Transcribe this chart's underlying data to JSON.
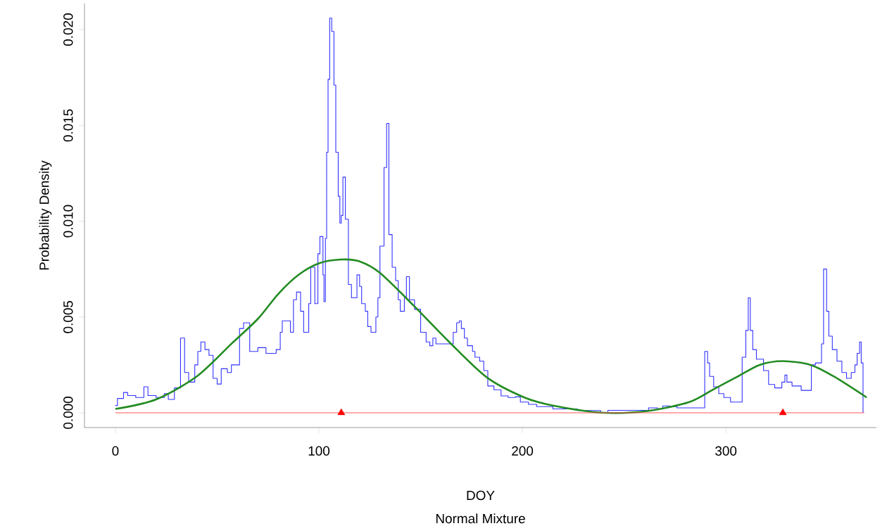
{
  "chart_data": {
    "type": "step",
    "xlabel": "DOY",
    "subtitle": "Normal Mixture",
    "ylabel": "Probability Density",
    "xlim": [
      -15.2,
      374
    ],
    "ylim": [
      -0.00077,
      0.02136
    ],
    "xticks": [
      0,
      100,
      200,
      300
    ],
    "yticks": [
      {
        "value": 0,
        "label": "0.000"
      },
      {
        "value": 0.005,
        "label": "0.005"
      },
      {
        "value": 0.01,
        "label": "0.010"
      },
      {
        "value": 0.015,
        "label": "0.015"
      },
      {
        "value": 0.02,
        "label": "0.020"
      }
    ],
    "grid": false,
    "series": [
      {
        "color": "#3333ff",
        "x": [
          0,
          1,
          4,
          6,
          10,
          14,
          16,
          20,
          24,
          26,
          29,
          32,
          34,
          36,
          39,
          40.5,
          42,
          44,
          46,
          48,
          50,
          52,
          55,
          57,
          61,
          63,
          66,
          70,
          74,
          79,
          81,
          82,
          86,
          87.5,
          89,
          91,
          92.5,
          95,
          96,
          98,
          99.5,
          100.5,
          102,
          102.5,
          103.2,
          103.8,
          104.5,
          105.3,
          106.3,
          107.4,
          108.3,
          109.5,
          110.3,
          111,
          111.8,
          113,
          114.5,
          116,
          118.7,
          120,
          121,
          122.8,
          124,
          125.6,
          128,
          129,
          130,
          132,
          133.3,
          134.4,
          136,
          137.7,
          139,
          140,
          142,
          143,
          144.5,
          147,
          150,
          152.7,
          154.5,
          156,
          157.5,
          166,
          167.7,
          169,
          170,
          171.5,
          173,
          175.5,
          176.7,
          179,
          181,
          183,
          186,
          189.5,
          193,
          196.5,
          199,
          203,
          207,
          215,
          227,
          238.5,
          242,
          262,
          266.5,
          269,
          272.5,
          276,
          289.6,
          291,
          292,
          294,
          296.5,
          299,
          302.3,
          308,
          309.8,
          311,
          312,
          313.2,
          315,
          318.5,
          321,
          324,
          327.5,
          329,
          330,
          332.5,
          337,
          342,
          344,
          347,
          348,
          349.5,
          350.6,
          352.3,
          354.6,
          357,
          359.3,
          361.6,
          363.4,
          364.5,
          365.7,
          366.5,
          367.4
        ],
        "values": [
          0.00038,
          0.00075,
          0.00106,
          0.0009,
          0.0008,
          0.00136,
          0.0009,
          0.0008,
          0.001,
          0.0007,
          0.0013,
          0.0039,
          0.0021,
          0.0016,
          0.0025,
          0.0032,
          0.0037,
          0.0033,
          0.003,
          0.0018,
          0.0015,
          0.0023,
          0.0021,
          0.0025,
          0.0044,
          0.0047,
          0.0032,
          0.0034,
          0.0031,
          0.0033,
          0.0042,
          0.0048,
          0.0042,
          0.0059,
          0.0063,
          0.0053,
          0.0042,
          0.0057,
          0.0076,
          0.0057,
          0.0083,
          0.0092,
          0.0072,
          0.0058,
          0.0091,
          0.0136,
          0.0174,
          0.0206,
          0.0199,
          0.0171,
          0.0136,
          0.0113,
          0.0099,
          0.0103,
          0.0123,
          0.0101,
          0.0067,
          0.006,
          0.0072,
          0.0066,
          0.0057,
          0.0053,
          0.0045,
          0.0042,
          0.005,
          0.006,
          0.0087,
          0.0128,
          0.0151,
          0.0093,
          0.0076,
          0.0069,
          0.0059,
          0.0053,
          0.006,
          0.0071,
          0.0059,
          0.0054,
          0.0042,
          0.0037,
          0.0035,
          0.0039,
          0.0036,
          0.0042,
          0.0047,
          0.0048,
          0.0044,
          0.0039,
          0.0035,
          0.0032,
          0.0029,
          0.0027,
          0.0022,
          0.0014,
          0.0012,
          0.00088,
          0.0008,
          0.00083,
          0.00056,
          0.00044,
          0.00032,
          0.0002,
          0.00012,
          0,
          0.00013,
          0.00026,
          0.0002,
          0.00036,
          0.00032,
          0.00026,
          0.0032,
          0.0026,
          0.0019,
          0.00136,
          0.001,
          0.0008,
          0.00056,
          0.0029,
          0.0043,
          0.006,
          0.0043,
          0.0033,
          0.0028,
          0.0022,
          0.00148,
          0.0013,
          0.0016,
          0.00197,
          0.0016,
          0.0014,
          0.00117,
          0.0025,
          0.0026,
          0.0036,
          0.0075,
          0.0053,
          0.004,
          0.0033,
          0.0027,
          0.0021,
          0.0018,
          0.0021,
          0.0025,
          0.0031,
          0.0037,
          0.0026,
          0
        ]
      },
      {
        "type": "line",
        "color": "#228b22",
        "x": [
          0,
          20,
          40,
          57,
          70,
          80,
          90,
          100,
          111,
          120,
          130,
          146.5,
          164,
          182.5,
          201,
          215,
          240,
          262,
          282,
          293.5,
          305,
          316.6,
          328,
          341.6,
          353,
          369.2
        ],
        "values": [
          0.0002,
          0.0007,
          0.0019,
          0.0036,
          0.0049,
          0.0062,
          0.0072,
          0.0078,
          0.008,
          0.0079,
          0.0073,
          0.0056,
          0.0037,
          0.00185,
          0.0008,
          0.00038,
          0,
          0.0001,
          0.00056,
          0.0012,
          0.00185,
          0.0025,
          0.0027,
          0.0025,
          0.0019,
          0.0008
        ]
      },
      {
        "type": "line",
        "color": "#ff5555",
        "x": [
          0,
          368
        ],
        "values": [
          0,
          0
        ]
      },
      {
        "type": "scatter",
        "color": "#ff0000",
        "marker": "triangle",
        "x": [
          111,
          328
        ],
        "values": [
          0,
          0
        ]
      }
    ]
  }
}
